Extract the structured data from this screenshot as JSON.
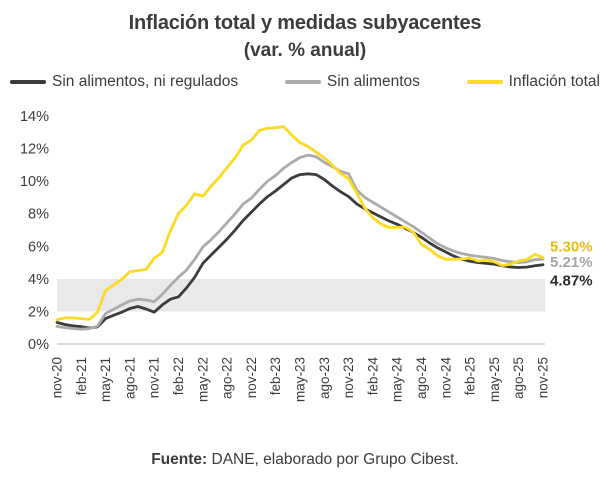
{
  "title": "Inflación total y medidas subyacentes",
  "subtitle": "(var. % anual)",
  "legend": [
    {
      "label": "Sin alimentos, ni regulados",
      "color": "#3C3C3B"
    },
    {
      "label": "Sin alimentos",
      "color": "#ABABAB"
    },
    {
      "label": "Inflación total",
      "color": "#FDDA24"
    }
  ],
  "source_note": {
    "prefix": "Fuente:",
    "text": " DANE, elaborado por Grupo Cibest."
  },
  "chart_data": {
    "type": "line",
    "title": "Inflación total y medidas subyacentes (var. % anual)",
    "xlabel": "",
    "ylabel": "",
    "ylim": [
      0,
      14
    ],
    "y_ticks": [
      "0%",
      "2%",
      "4%",
      "6%",
      "8%",
      "10%",
      "12%",
      "14%"
    ],
    "grid": false,
    "legend_position": "top",
    "target_band": {
      "from": 2,
      "to": 4,
      "color": "#E9E9E9"
    },
    "x": [
      "nov-20",
      "dic-20",
      "ene-21",
      "feb-21",
      "mar-21",
      "abr-21",
      "may-21",
      "jun-21",
      "jul-21",
      "ago-21",
      "sep-21",
      "oct-21",
      "nov-21",
      "dic-21",
      "ene-22",
      "feb-22",
      "mar-22",
      "abr-22",
      "may-22",
      "jun-22",
      "jul-22",
      "ago-22",
      "sep-22",
      "oct-22",
      "nov-22",
      "dic-22",
      "ene-23",
      "feb-23",
      "mar-23",
      "abr-23",
      "may-23",
      "jun-23",
      "jul-23",
      "ago-23",
      "sep-23",
      "oct-23",
      "nov-23",
      "dic-23",
      "ene-24",
      "feb-24",
      "mar-24",
      "abr-24",
      "may-24",
      "jun-24",
      "jul-24",
      "ago-24",
      "sep-24",
      "oct-24",
      "nov-24",
      "dic-24",
      "ene-25",
      "feb-25",
      "mar-25",
      "abr-25",
      "may-25",
      "jun-25",
      "jul-25",
      "ago-25",
      "sep-25",
      "oct-25",
      "nov-25"
    ],
    "x_tick_labels": [
      "nov-20",
      "feb-21",
      "may-21",
      "ago-21",
      "nov-21",
      "feb-22",
      "may-22",
      "ago-22",
      "nov-22",
      "feb-23",
      "may-23",
      "ago-23",
      "nov-23",
      "feb-24",
      "may-24",
      "ago-24",
      "nov-24",
      "feb-25",
      "may-25",
      "ago-25",
      "nov-25"
    ],
    "series": [
      {
        "name": "Sin alimentos, ni regulados",
        "color": "#3C3C3B",
        "label_color": "#2B2B2B",
        "end_label": "4.87%",
        "values": [
          1.32,
          1.2,
          1.11,
          1.06,
          0.98,
          1.05,
          1.56,
          1.77,
          1.95,
          2.18,
          2.3,
          2.15,
          1.95,
          2.4,
          2.75,
          2.9,
          3.45,
          4.1,
          4.95,
          5.45,
          5.95,
          6.45,
          7.0,
          7.6,
          8.1,
          8.6,
          9.05,
          9.4,
          9.8,
          10.2,
          10.4,
          10.45,
          10.4,
          10.1,
          9.7,
          9.35,
          9.05,
          8.6,
          8.3,
          8.05,
          7.8,
          7.55,
          7.35,
          7.1,
          6.85,
          6.55,
          6.2,
          5.9,
          5.65,
          5.4,
          5.2,
          5.08,
          5.0,
          4.95,
          4.9,
          4.8,
          4.73,
          4.7,
          4.72,
          4.8,
          4.87
        ]
      },
      {
        "name": "Sin alimentos",
        "color": "#ABABAB",
        "label_color": "#A6A6A6",
        "end_label": "5.21%",
        "values": [
          1.08,
          1.0,
          0.95,
          0.91,
          0.94,
          1.1,
          1.87,
          2.13,
          2.4,
          2.64,
          2.75,
          2.7,
          2.6,
          3.05,
          3.6,
          4.11,
          4.55,
          5.2,
          5.95,
          6.4,
          6.9,
          7.45,
          8.0,
          8.6,
          8.95,
          9.5,
          10.0,
          10.35,
          10.8,
          11.15,
          11.45,
          11.6,
          11.5,
          11.15,
          10.9,
          10.6,
          10.45,
          9.45,
          9.0,
          8.7,
          8.4,
          8.1,
          7.8,
          7.5,
          7.2,
          6.85,
          6.5,
          6.15,
          5.9,
          5.7,
          5.55,
          5.45,
          5.38,
          5.32,
          5.25,
          5.12,
          5.05,
          5.0,
          5.05,
          5.18,
          5.21
        ]
      },
      {
        "name": "Inflación total",
        "color": "#FDDA24",
        "label_color": "#E5BD12",
        "end_label": "5.30%",
        "values": [
          1.49,
          1.61,
          1.6,
          1.56,
          1.51,
          1.95,
          3.3,
          3.63,
          3.97,
          4.44,
          4.51,
          4.58,
          5.26,
          5.62,
          6.94,
          8.01,
          8.53,
          9.23,
          9.07,
          9.67,
          10.21,
          10.84,
          11.44,
          12.22,
          12.53,
          13.12,
          13.25,
          13.28,
          13.34,
          12.82,
          12.36,
          12.13,
          11.78,
          11.43,
          10.99,
          10.48,
          10.15,
          9.28,
          8.35,
          7.74,
          7.36,
          7.16,
          7.16,
          7.18,
          6.86,
          6.12,
          5.81,
          5.41,
          5.2,
          5.2,
          5.22,
          5.28,
          5.09,
          5.16,
          5.05,
          4.82,
          4.9,
          5.1,
          5.18,
          5.51,
          5.3
        ]
      }
    ]
  }
}
